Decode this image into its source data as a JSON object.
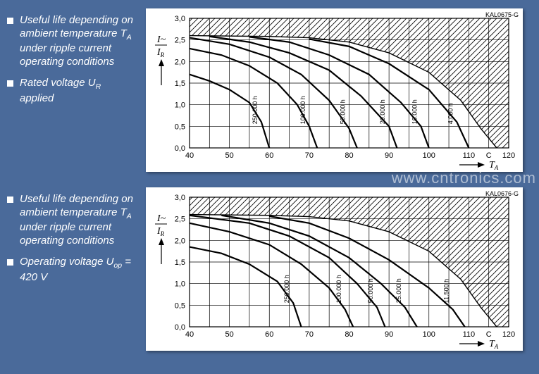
{
  "watermark": "www.cntronics.com",
  "charts": [
    {
      "chart_id": "KAL0675-G",
      "side_bullets": [
        "Useful life depending on ambient temperature T<sub>A</sub> under ripple current operating conditions",
        "Rated voltage U<sub>R</sub> applied"
      ],
      "y_label_top": "I~",
      "y_label_bot": "I",
      "y_label_sub": "R",
      "x_axis_label": "T",
      "x_axis_sub": "A",
      "x_unit": "C",
      "xlim": [
        40,
        120
      ],
      "ylim": [
        0,
        3.0
      ],
      "xticks": [
        40,
        50,
        60,
        70,
        80,
        90,
        100,
        110,
        120
      ],
      "yticks": [
        0,
        0.5,
        1.0,
        1.5,
        2.0,
        2.5,
        3.0
      ],
      "hatch_y_from": 2.6,
      "hatch_y_to": 3.0,
      "boundary_curve": [
        [
          40,
          2.6
        ],
        [
          60,
          2.58
        ],
        [
          70,
          2.55
        ],
        [
          80,
          2.45
        ],
        [
          90,
          2.2
        ],
        [
          100,
          1.75
        ],
        [
          108,
          1.1
        ],
        [
          113,
          0.45
        ],
        [
          117,
          0
        ]
      ],
      "curves": [
        {
          "label": "250.000 h",
          "points": [
            [
              40,
              1.7
            ],
            [
              45,
              1.55
            ],
            [
              50,
              1.35
            ],
            [
              55,
              1.05
            ],
            [
              58,
              0.6
            ],
            [
              60,
              0
            ]
          ]
        },
        {
          "label": "100.000 h",
          "points": [
            [
              40,
              2.3
            ],
            [
              48,
              2.15
            ],
            [
              55,
              1.9
            ],
            [
              62,
              1.5
            ],
            [
              67,
              1.0
            ],
            [
              70,
              0.5
            ],
            [
              72,
              0
            ]
          ]
        },
        {
          "label": "50.000 h",
          "points": [
            [
              40,
              2.55
            ],
            [
              50,
              2.4
            ],
            [
              60,
              2.1
            ],
            [
              68,
              1.7
            ],
            [
              75,
              1.1
            ],
            [
              80,
              0.45
            ],
            [
              82,
              0
            ]
          ]
        },
        {
          "label": "20.000 h",
          "points": [
            [
              45,
              2.58
            ],
            [
              55,
              2.45
            ],
            [
              65,
              2.2
            ],
            [
              75,
              1.8
            ],
            [
              83,
              1.2
            ],
            [
              90,
              0.5
            ],
            [
              92,
              0
            ]
          ]
        },
        {
          "label": "10.000 h",
          "points": [
            [
              55,
              2.57
            ],
            [
              65,
              2.45
            ],
            [
              75,
              2.15
            ],
            [
              85,
              1.7
            ],
            [
              93,
              1.05
            ],
            [
              98,
              0.5
            ],
            [
              100,
              0
            ]
          ]
        },
        {
          "label": "4.000 h",
          "points": [
            [
              70,
              2.52
            ],
            [
              80,
              2.35
            ],
            [
              90,
              1.95
            ],
            [
              100,
              1.35
            ],
            [
              107,
              0.6
            ],
            [
              110,
              0
            ]
          ]
        }
      ],
      "line_color": "#000000",
      "line_width": 2.2,
      "grid_color": "#000000",
      "grid_width": 0.7,
      "bg": "#ffffff"
    },
    {
      "chart_id": "KAL0676-G",
      "side_bullets": [
        "Useful life depending on ambient temperature T<sub>A</sub> under ripple current operating conditions",
        "Operating voltage U<sub>op</sub> = 420 V"
      ],
      "y_label_top": "I~",
      "y_label_bot": "I",
      "y_label_sub": "R",
      "x_axis_label": "T",
      "x_axis_sub": "A",
      "x_unit": "C",
      "xlim": [
        40,
        120
      ],
      "ylim": [
        0,
        3.0
      ],
      "xticks": [
        40,
        50,
        60,
        70,
        80,
        90,
        100,
        110,
        120
      ],
      "yticks": [
        0,
        0.5,
        1.0,
        1.5,
        2.0,
        2.5,
        3.0
      ],
      "hatch_y_from": 2.6,
      "hatch_y_to": 3.0,
      "boundary_curve": [
        [
          40,
          2.6
        ],
        [
          60,
          2.58
        ],
        [
          70,
          2.55
        ],
        [
          80,
          2.45
        ],
        [
          90,
          2.2
        ],
        [
          100,
          1.75
        ],
        [
          108,
          1.1
        ],
        [
          113,
          0.45
        ],
        [
          117,
          0
        ]
      ],
      "curves": [
        {
          "label": "250.000 h",
          "points": [
            [
              40,
              1.85
            ],
            [
              48,
              1.7
            ],
            [
              55,
              1.45
            ],
            [
              62,
              1.05
            ],
            [
              66,
              0.55
            ],
            [
              68,
              0
            ]
          ]
        },
        {
          "label": "100.000 h",
          "points": [
            [
              40,
              2.4
            ],
            [
              50,
              2.2
            ],
            [
              60,
              1.9
            ],
            [
              68,
              1.45
            ],
            [
              75,
              0.9
            ],
            [
              79,
              0.4
            ],
            [
              81,
              0
            ]
          ]
        },
        {
          "label": "50.000 h",
          "points": [
            [
              40,
              2.58
            ],
            [
              55,
              2.4
            ],
            [
              65,
              2.1
            ],
            [
              75,
              1.6
            ],
            [
              82,
              1.0
            ],
            [
              87,
              0.45
            ],
            [
              89,
              0
            ]
          ]
        },
        {
          "label": "25.000 h",
          "points": [
            [
              48,
              2.58
            ],
            [
              60,
              2.4
            ],
            [
              70,
              2.1
            ],
            [
              80,
              1.6
            ],
            [
              88,
              1.0
            ],
            [
              94,
              0.45
            ],
            [
              97,
              0
            ]
          ]
        },
        {
          "label": "11.500 h",
          "points": [
            [
              60,
              2.56
            ],
            [
              70,
              2.4
            ],
            [
              80,
              2.05
            ],
            [
              90,
              1.55
            ],
            [
              100,
              0.9
            ],
            [
              106,
              0.4
            ],
            [
              109,
              0
            ]
          ]
        }
      ],
      "line_color": "#000000",
      "line_width": 2.2,
      "grid_color": "#000000",
      "grid_width": 0.7,
      "bg": "#ffffff"
    }
  ]
}
